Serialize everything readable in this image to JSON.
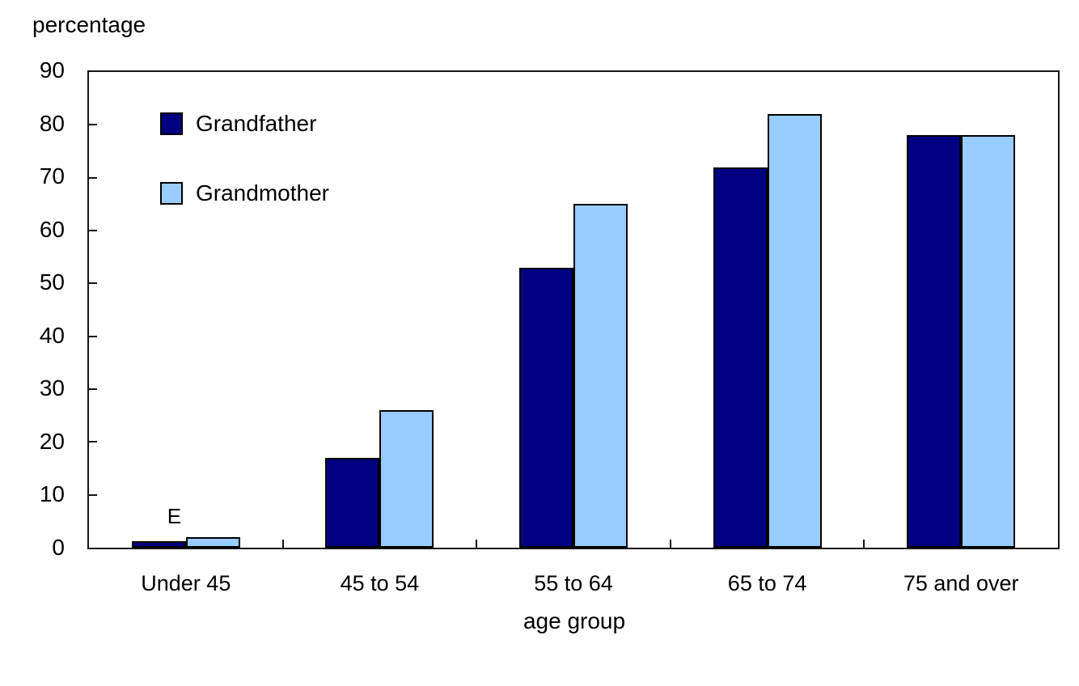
{
  "chart_data": {
    "type": "bar",
    "title": "",
    "ylabel": "percentage",
    "xlabel": "age group",
    "ylim": [
      0,
      90
    ],
    "yticks": [
      0,
      10,
      20,
      30,
      40,
      50,
      60,
      70,
      80,
      90
    ],
    "categories": [
      "Under 45",
      "45 to 54",
      "55 to 64",
      "65 to 74",
      "75 and over"
    ],
    "series": [
      {
        "name": "Grandfather",
        "color": "#000080",
        "values": [
          1.3,
          17,
          53,
          72,
          78
        ]
      },
      {
        "name": "Grandmother",
        "color": "#99CCFF",
        "values": [
          2,
          26,
          65,
          82,
          78
        ]
      }
    ],
    "annotations": [
      {
        "text": "E",
        "category_index": 0,
        "series_index": 0
      }
    ],
    "legend_position": "top-left-inside",
    "grid": false
  }
}
